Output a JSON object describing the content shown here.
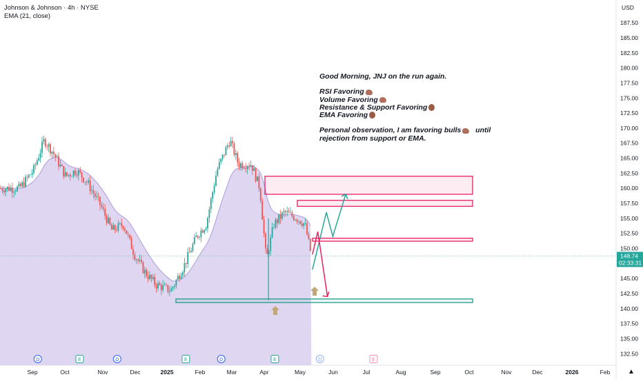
{
  "header": {
    "symbol_line": "Johnson & Johnson · 4h · NYSE",
    "indicator_line": "EMA (21, close)"
  },
  "axis": {
    "currency": "USD",
    "last_price": "148.74",
    "countdown": "02:33:31"
  },
  "note": {
    "line1": "Good Morning, JNJ on the run again.",
    "line2": "RSI Favoring",
    "line3": "Volume Favoring",
    "line4": "Resistance & Support Favoring",
    "line5": "EMA Favoring",
    "line6a": "Personal observation, I am favoring bulls",
    "line6b": "until",
    "line7": "rejection from support or EMA."
  },
  "colors": {
    "up": "#26a69a",
    "down": "#ef5350",
    "ema_fill": "#d9cff0",
    "ema_line": "#b7a6e0",
    "resistance": "#e91e63",
    "support": "#1e9c8c",
    "projection_up": "#26a69a",
    "projection_down": "#e91e63",
    "marker": "#c2a878",
    "last_price_bg": "#26a69a"
  },
  "chart_data": {
    "type": "candlestick",
    "symbol": "Johnson & Johnson",
    "timeframe": "4h",
    "exchange": "NYSE",
    "indicator": "EMA (21, close)",
    "last_price": 148.74,
    "ylim": [
      131.5,
      189
    ],
    "y_ticks": [
      132.5,
      135,
      137.5,
      140,
      142.5,
      145,
      147.5,
      150,
      152.5,
      155,
      157.5,
      160,
      162.5,
      165,
      167.5,
      170,
      172.5,
      175,
      177.5,
      180,
      182.5,
      185,
      187.5
    ],
    "x_tick_labels": [
      "Sep",
      "Oct",
      "Nov",
      "Dec",
      "2025",
      "Feb",
      "Mar",
      "Apr",
      "May",
      "Jun",
      "Jul",
      "Aug",
      "Sep",
      "Oct",
      "Nov",
      "Dec",
      "2026",
      "Feb"
    ],
    "price_path": [
      {
        "date": "2024-08-20",
        "close": 160
      },
      {
        "date": "2024-09-02",
        "close": 163
      },
      {
        "date": "2024-09-12",
        "close": 168
      },
      {
        "date": "2024-09-20",
        "close": 166
      },
      {
        "date": "2024-10-02",
        "close": 162
      },
      {
        "date": "2024-10-12",
        "close": 163
      },
      {
        "date": "2024-10-22",
        "close": 161
      },
      {
        "date": "2024-11-04",
        "close": 157
      },
      {
        "date": "2024-11-14",
        "close": 153
      },
      {
        "date": "2024-11-25",
        "close": 154
      },
      {
        "date": "2024-12-05",
        "close": 149
      },
      {
        "date": "2024-12-15",
        "close": 146
      },
      {
        "date": "2024-12-25",
        "close": 144
      },
      {
        "date": "2025-01-08",
        "close": 143
      },
      {
        "date": "2025-01-20",
        "close": 147
      },
      {
        "date": "2025-02-01",
        "close": 152
      },
      {
        "date": "2025-02-10",
        "close": 154
      },
      {
        "date": "2025-02-20",
        "close": 163
      },
      {
        "date": "2025-03-04",
        "close": 168
      },
      {
        "date": "2025-03-12",
        "close": 164
      },
      {
        "date": "2025-03-24",
        "close": 164
      },
      {
        "date": "2025-04-01",
        "close": 160
      },
      {
        "date": "2025-04-07",
        "close": 148
      },
      {
        "date": "2025-04-14",
        "close": 154
      },
      {
        "date": "2025-04-24",
        "close": 156
      },
      {
        "date": "2025-05-06",
        "close": 155
      },
      {
        "date": "2025-05-13",
        "close": 154
      },
      {
        "date": "2025-05-19",
        "close": 148.74
      }
    ],
    "zones": [
      {
        "kind": "resistance",
        "y0": 159,
        "y1": 162
      },
      {
        "kind": "resistance",
        "y0": 157,
        "y1": 158
      },
      {
        "kind": "resistance",
        "y0": 151.2,
        "y1": 151.7
      },
      {
        "kind": "support",
        "y0": 141,
        "y1": 141.6
      }
    ],
    "projections": {
      "bullish": [
        {
          "date": "2025-05-20",
          "price": 146.5
        },
        {
          "date": "2025-06-02",
          "price": 156
        },
        {
          "date": "2025-06-08",
          "price": 152
        },
        {
          "date": "2025-06-20",
          "price": 159
        }
      ],
      "bearish": [
        {
          "date": "2025-05-20",
          "price": 149
        },
        {
          "date": "2025-05-25",
          "price": 152.8
        },
        {
          "date": "2025-06-03",
          "price": 142
        }
      ]
    },
    "event_markers": [
      {
        "label": "D",
        "date": "2024-09-06"
      },
      {
        "label": "E",
        "date": "2024-10-15"
      },
      {
        "label": "D",
        "date": "2024-11-19"
      },
      {
        "label": "E",
        "date": "2025-01-22"
      },
      {
        "label": "D",
        "date": "2025-02-24"
      },
      {
        "label": "E",
        "date": "2025-04-15"
      },
      {
        "label": "D",
        "date": "2025-05-27"
      },
      {
        "label": "E",
        "date": "2025-07-16"
      }
    ]
  }
}
